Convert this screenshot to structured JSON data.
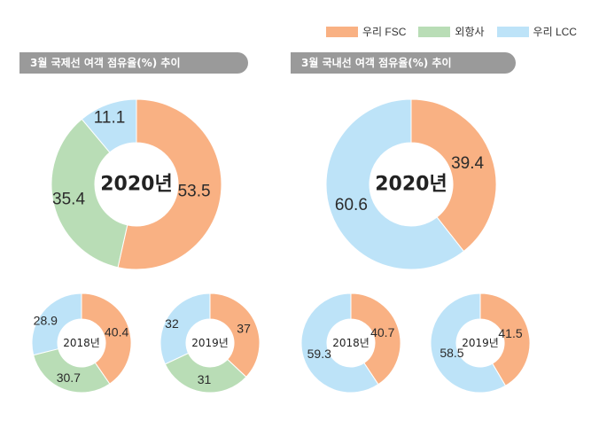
{
  "legend": [
    {
      "label": "우리 FSC",
      "color": "#f9b183"
    },
    {
      "label": "외항사",
      "color": "#b9ddb6"
    },
    {
      "label": "우리 LCC",
      "color": "#bde3f8"
    }
  ],
  "panels": {
    "international_title": "3월 국제선 여객 점유율(%) 추이",
    "domestic_title": "3월 국내선 여객 점유율(%) 추이"
  },
  "chart_data": [
    {
      "type": "pie",
      "subtype": "donut",
      "group": "international",
      "center_label": "2020년",
      "series": [
        {
          "name": "우리 FSC",
          "value": 53.5
        },
        {
          "name": "외항사",
          "value": 35.4
        },
        {
          "name": "우리 LCC",
          "value": 11.1
        }
      ]
    },
    {
      "type": "pie",
      "subtype": "donut",
      "group": "domestic",
      "center_label": "2020년",
      "series": [
        {
          "name": "우리 FSC",
          "value": 39.4
        },
        {
          "name": "우리 LCC",
          "value": 60.6
        }
      ]
    },
    {
      "type": "pie",
      "subtype": "donut",
      "group": "international",
      "center_label": "2018년",
      "series": [
        {
          "name": "우리 FSC",
          "value": 40.4
        },
        {
          "name": "외항사",
          "value": 30.7
        },
        {
          "name": "우리 LCC",
          "value": 28.9
        }
      ]
    },
    {
      "type": "pie",
      "subtype": "donut",
      "group": "international",
      "center_label": "2019년",
      "series": [
        {
          "name": "우리 FSC",
          "value": 37
        },
        {
          "name": "외항사",
          "value": 31
        },
        {
          "name": "우리 LCC",
          "value": 32
        }
      ]
    },
    {
      "type": "pie",
      "subtype": "donut",
      "group": "domestic",
      "center_label": "2018년",
      "series": [
        {
          "name": "우리 FSC",
          "value": 40.7
        },
        {
          "name": "우리 LCC",
          "value": 59.3
        }
      ]
    },
    {
      "type": "pie",
      "subtype": "donut",
      "group": "domestic",
      "center_label": "2019년",
      "series": [
        {
          "name": "우리 FSC",
          "value": 41.5
        },
        {
          "name": "우리 LCC",
          "value": 58.5
        }
      ]
    }
  ]
}
